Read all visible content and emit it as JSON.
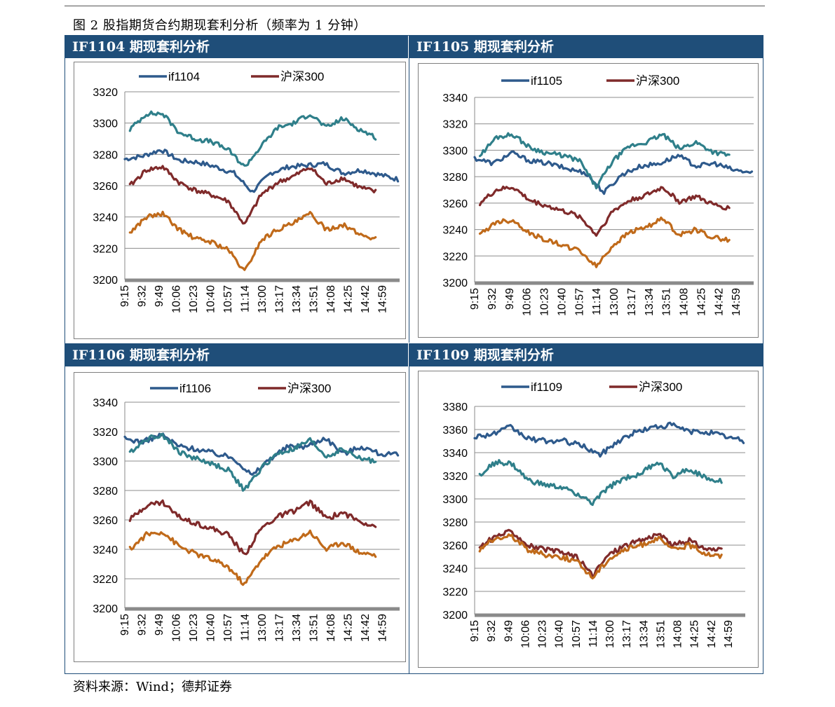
{
  "figure_title": "图 2 股指期货合约期现套利分析（频率为 1 分钟）",
  "source": "资料来源：Wind；德邦证券",
  "colors": {
    "header": "#1f4e79",
    "future_line": "#2e5a8c",
    "csi300_line": "#7f2a2a",
    "upper_band": "#2f7f8a",
    "lower_band": "#c06a1a"
  },
  "panels": [
    {
      "title": "IF1104 期现套利分析"
    },
    {
      "title": "IF1105 期现套利分析"
    },
    {
      "title": "IF1106 期现套利分析"
    },
    {
      "title": "IF1109 期现套利分析"
    }
  ],
  "chart_data": [
    {
      "type": "line",
      "title": "",
      "categories": [
        "9:15",
        "9:32",
        "9:49",
        "10:06",
        "10:23",
        "10:40",
        "10:57",
        "11:14",
        "13:00",
        "13:17",
        "13:34",
        "13:51",
        "14:08",
        "14:25",
        "14:42",
        "14:59"
      ],
      "ylim": [
        3200,
        3320
      ],
      "yticks": [
        3200,
        3220,
        3240,
        3260,
        3280,
        3300,
        3320
      ],
      "legend": [
        "if1104",
        "沪深300"
      ],
      "series": [
        {
          "name": "if1104",
          "role": "future",
          "start": 0,
          "end": 15.9,
          "values": [
            3277,
            3279,
            3283,
            3276,
            3275,
            3272,
            3268,
            3256,
            3268,
            3272,
            3273,
            3274,
            3268,
            3270,
            3267,
            3264
          ]
        },
        {
          "name": "",
          "role": "upper",
          "start": 0.3,
          "end": 14.6,
          "values": [
            3296,
            3306,
            3306,
            3294,
            3290,
            3288,
            3283,
            3272,
            3285,
            3297,
            3300,
            3306,
            3297,
            3303,
            3296,
            3291
          ]
        },
        {
          "name": "沪深300",
          "role": "csi300",
          "start": 0.3,
          "end": 14.6,
          "values": [
            3260,
            3270,
            3272,
            3262,
            3257,
            3254,
            3250,
            3235,
            3254,
            3262,
            3266,
            3272,
            3261,
            3265,
            3259,
            3256
          ]
        },
        {
          "name": "",
          "role": "lower",
          "start": 0.3,
          "end": 14.6,
          "values": [
            3230,
            3240,
            3242,
            3232,
            3226,
            3224,
            3219,
            3205,
            3225,
            3232,
            3236,
            3242,
            3232,
            3235,
            3229,
            3226
          ]
        }
      ]
    },
    {
      "type": "line",
      "title": "",
      "categories": [
        "9:15",
        "9:32",
        "9:49",
        "10:06",
        "10:23",
        "10:40",
        "10:57",
        "11:14",
        "13:00",
        "13:17",
        "13:34",
        "13:51",
        "14:08",
        "14:25",
        "14:42",
        "14:59"
      ],
      "ylim": [
        3200,
        3340
      ],
      "yticks": [
        3200,
        3220,
        3240,
        3260,
        3280,
        3300,
        3320,
        3340
      ],
      "legend": [
        "if1105",
        "沪深300"
      ],
      "series": [
        {
          "name": "if1105",
          "role": "future",
          "start": 0,
          "end": 15.9,
          "values": [
            3294,
            3290,
            3298,
            3292,
            3290,
            3286,
            3283,
            3268,
            3282,
            3288,
            3290,
            3296,
            3288,
            3290,
            3285,
            3283
          ]
        },
        {
          "name": "",
          "role": "upper",
          "start": 0.3,
          "end": 14.6,
          "values": [
            3296,
            3310,
            3312,
            3302,
            3298,
            3296,
            3292,
            3272,
            3292,
            3303,
            3306,
            3312,
            3301,
            3306,
            3299,
            3296
          ]
        },
        {
          "name": "沪深300",
          "role": "csi300",
          "start": 0.3,
          "end": 14.6,
          "values": [
            3260,
            3270,
            3272,
            3262,
            3258,
            3254,
            3250,
            3236,
            3254,
            3262,
            3266,
            3272,
            3261,
            3265,
            3259,
            3256
          ]
        },
        {
          "name": "",
          "role": "lower",
          "start": 0.3,
          "end": 14.6,
          "values": [
            3236,
            3246,
            3247,
            3237,
            3232,
            3228,
            3224,
            3212,
            3228,
            3238,
            3242,
            3248,
            3236,
            3240,
            3234,
            3232
          ]
        }
      ]
    },
    {
      "type": "line",
      "title": "",
      "categories": [
        "9:15",
        "9:32",
        "9:49",
        "10:06",
        "10:23",
        "10:40",
        "10:57",
        "11:14",
        "13:00",
        "13:17",
        "13:34",
        "13:51",
        "14:08",
        "14:25",
        "14:42",
        "14:59"
      ],
      "ylim": [
        3200,
        3340
      ],
      "yticks": [
        3200,
        3220,
        3240,
        3260,
        3280,
        3300,
        3320,
        3340
      ],
      "legend": [
        "if1106",
        "沪深300"
      ],
      "series": [
        {
          "name": "if1106",
          "role": "future",
          "start": 0,
          "end": 15.9,
          "values": [
            3315,
            3313,
            3318,
            3310,
            3308,
            3305,
            3302,
            3290,
            3302,
            3310,
            3310,
            3316,
            3305,
            3310,
            3305,
            3304
          ]
        },
        {
          "name": "",
          "role": "upper",
          "start": 0.3,
          "end": 14.6,
          "values": [
            3306,
            3315,
            3318,
            3306,
            3302,
            3298,
            3294,
            3280,
            3295,
            3305,
            3308,
            3314,
            3303,
            3308,
            3302,
            3300
          ]
        },
        {
          "name": "沪深300",
          "role": "csi300",
          "start": 0.3,
          "end": 14.6,
          "values": [
            3260,
            3270,
            3272,
            3262,
            3258,
            3254,
            3250,
            3236,
            3254,
            3262,
            3266,
            3272,
            3261,
            3265,
            3259,
            3256
          ]
        },
        {
          "name": "",
          "role": "lower",
          "start": 0.3,
          "end": 14.6,
          "values": [
            3240,
            3250,
            3252,
            3242,
            3237,
            3233,
            3228,
            3216,
            3233,
            3242,
            3246,
            3252,
            3240,
            3245,
            3238,
            3236
          ]
        }
      ]
    },
    {
      "type": "line",
      "title": "",
      "categories": [
        "9:15",
        "9:32",
        "9:49",
        "10:06",
        "10:23",
        "10:40",
        "10:57",
        "11:14",
        "13:00",
        "13:17",
        "13:34",
        "13:51",
        "14:08",
        "14:25",
        "14:42",
        "14:59"
      ],
      "ylim": [
        3200,
        3380
      ],
      "yticks": [
        3200,
        3220,
        3240,
        3260,
        3280,
        3300,
        3320,
        3340,
        3360,
        3380
      ],
      "legend": [
        "if1109",
        "沪深300"
      ],
      "series": [
        {
          "name": "if1109",
          "role": "future",
          "start": 0,
          "end": 15.9,
          "values": [
            3354,
            3356,
            3362,
            3352,
            3350,
            3350,
            3346,
            3338,
            3350,
            3358,
            3362,
            3364,
            3358,
            3358,
            3354,
            3350
          ]
        },
        {
          "name": "",
          "role": "upper",
          "start": 0.3,
          "end": 14.6,
          "values": [
            3320,
            3332,
            3330,
            3316,
            3312,
            3310,
            3305,
            3296,
            3310,
            3318,
            3322,
            3332,
            3320,
            3326,
            3318,
            3316
          ]
        },
        {
          "name": "沪深300",
          "role": "csi300",
          "start": 0.3,
          "end": 14.6,
          "values": [
            3258,
            3268,
            3272,
            3260,
            3256,
            3254,
            3250,
            3234,
            3252,
            3260,
            3264,
            3270,
            3260,
            3264,
            3257,
            3255
          ]
        },
        {
          "name": "",
          "role": "lower",
          "start": 0.3,
          "end": 14.6,
          "values": [
            3256,
            3266,
            3268,
            3256,
            3252,
            3250,
            3246,
            3232,
            3248,
            3256,
            3260,
            3266,
            3256,
            3260,
            3253,
            3250
          ]
        }
      ]
    }
  ]
}
